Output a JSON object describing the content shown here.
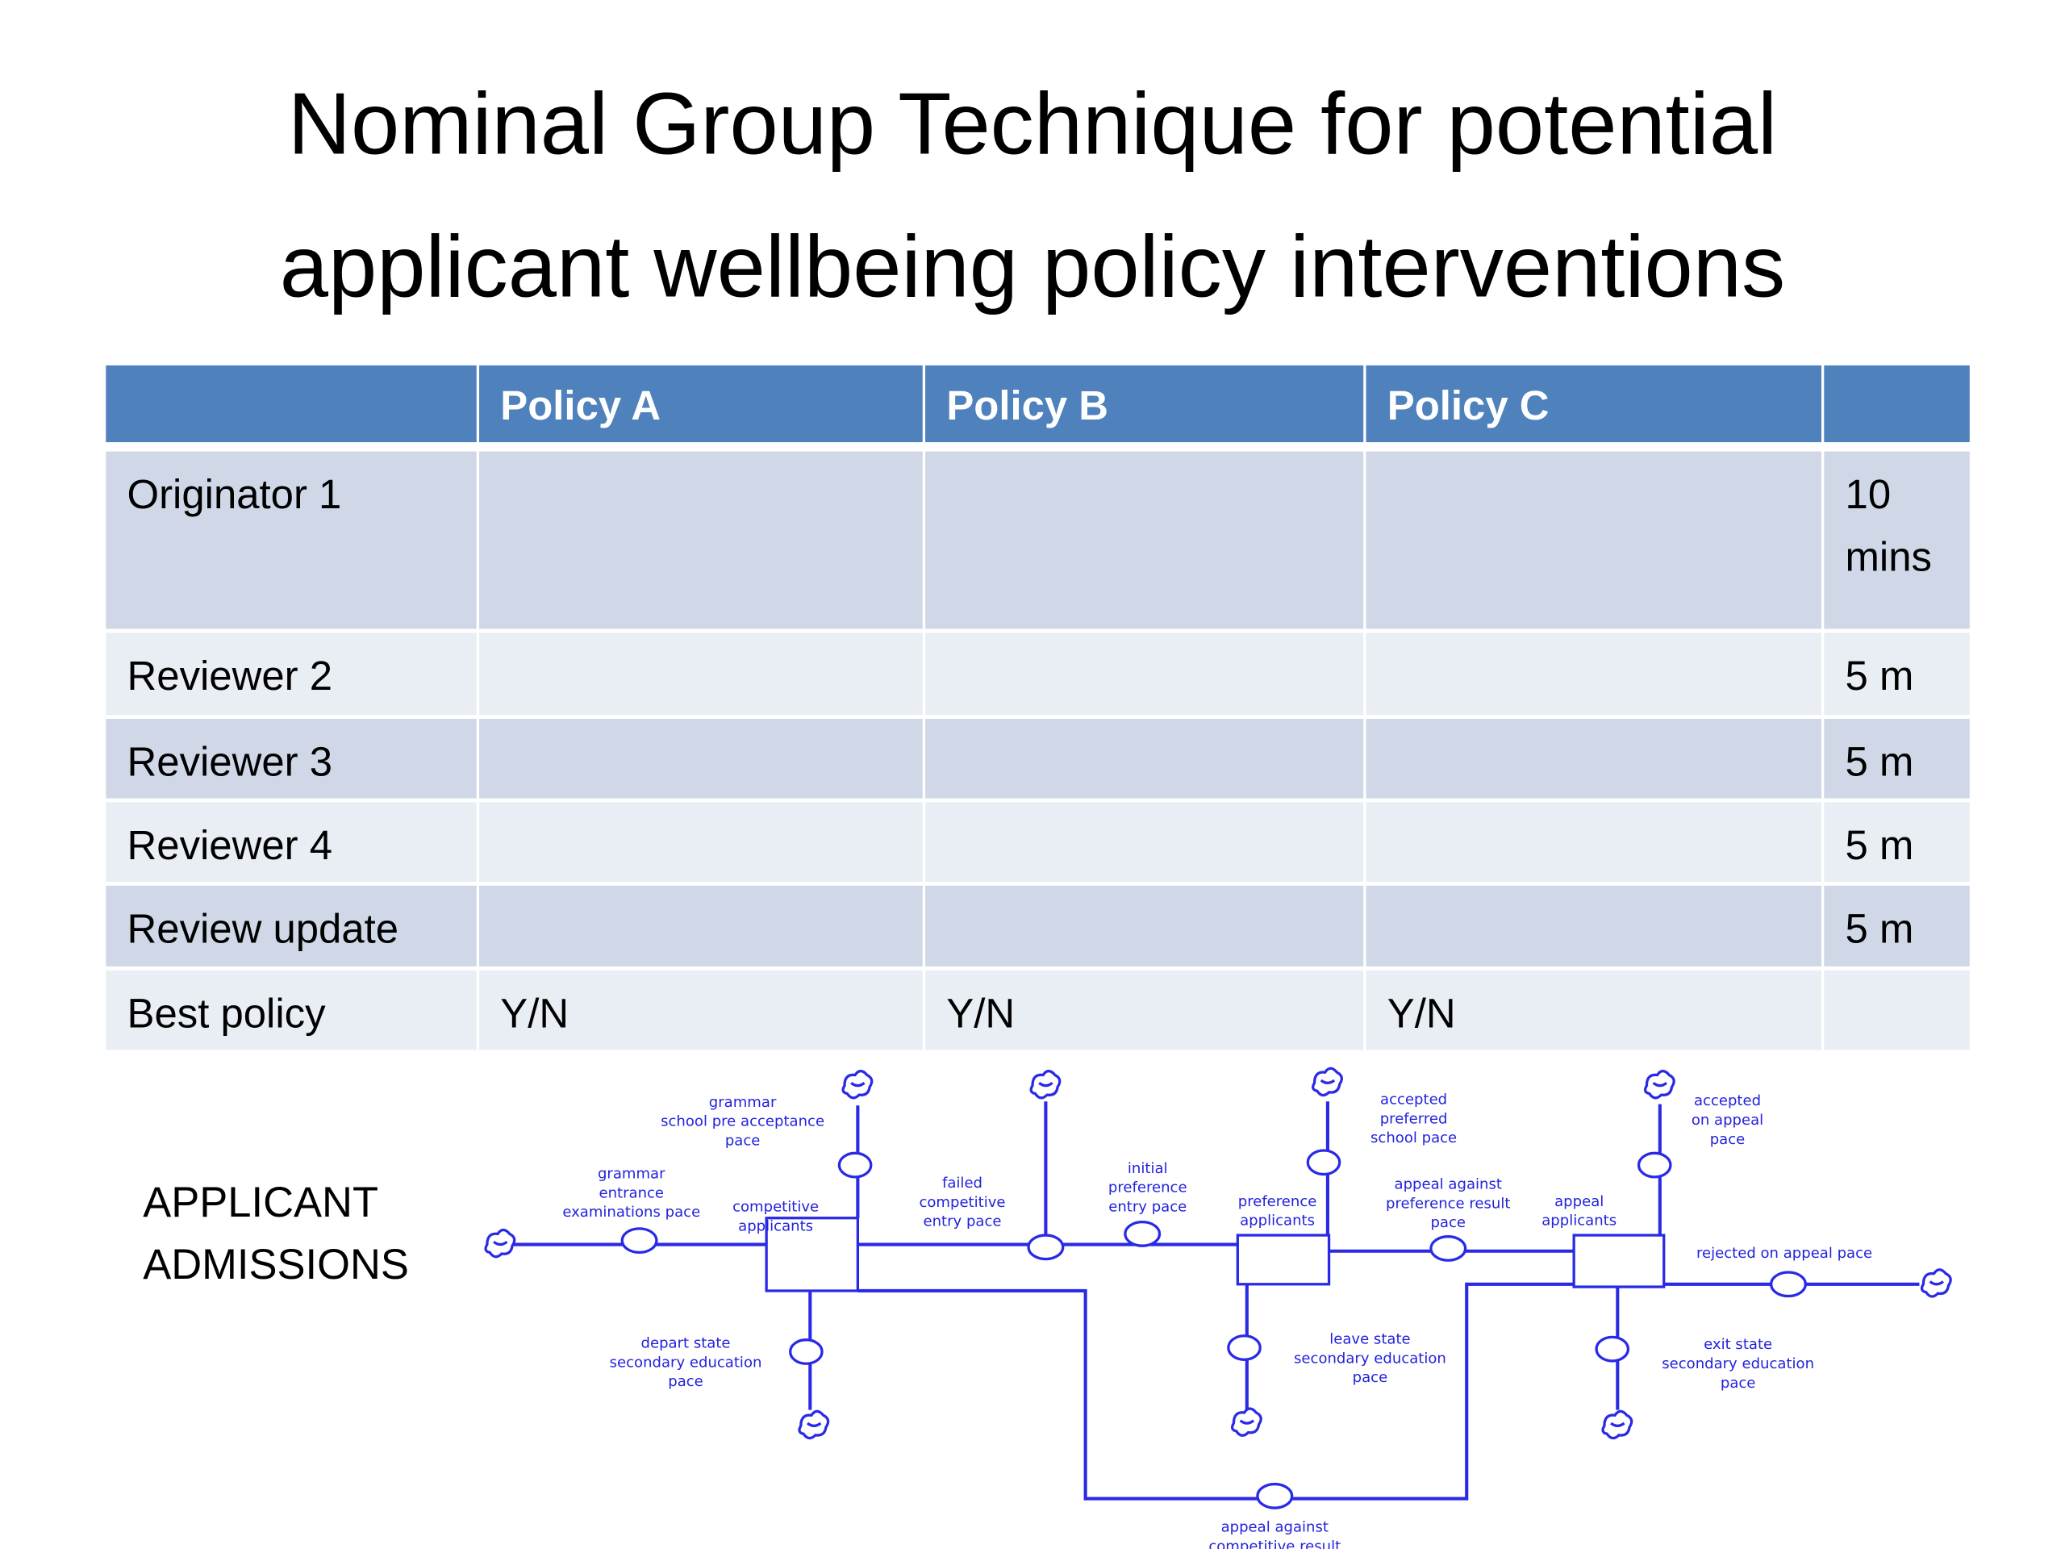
{
  "title": {
    "lines": [
      "Nominal Group Technique for potential",
      "applicant wellbeing policy interventions"
    ]
  },
  "table": {
    "columns": [
      "Policy A",
      "Policy B",
      "Policy C"
    ],
    "rows": [
      {
        "label": "Originator 1",
        "time": "10 mins"
      },
      {
        "label": "Reviewer 2",
        "time": "5 m"
      },
      {
        "label": "Reviewer 3",
        "time": "5 m"
      },
      {
        "label": "Reviewer 4",
        "time": "5 m"
      },
      {
        "label": "Review update",
        "time": "5 m"
      },
      {
        "label": "Best policy",
        "choices": [
          "Y/N",
          "Y/N",
          "Y/N"
        ]
      }
    ]
  },
  "diagram": {
    "heading": [
      "APPLICANT",
      "ADMISSIONS"
    ],
    "labels": [
      [
        "grammar",
        "school pre acceptance",
        "pace"
      ],
      [
        "grammar",
        "entrance",
        "examinations pace"
      ],
      [
        "competitive",
        "applicants"
      ],
      [
        "failed",
        "competitive",
        "entry pace"
      ],
      [
        "initial",
        "preference",
        "entry pace"
      ],
      [
        "preference",
        "applicants"
      ],
      [
        "accepted",
        "preferred",
        "school pace"
      ],
      [
        "appeal against",
        "preference result",
        "pace"
      ],
      [
        "appeal",
        "applicants"
      ],
      [
        "accepted",
        "on appeal",
        "pace"
      ],
      [
        "rejected on appeal pace"
      ],
      [
        "depart state",
        "secondary education",
        "pace"
      ],
      [
        "leave state",
        "secondary education",
        "pace"
      ],
      [
        "exit state",
        "secondary education",
        "pace"
      ],
      [
        "appeal against",
        "competitive result"
      ]
    ]
  }
}
